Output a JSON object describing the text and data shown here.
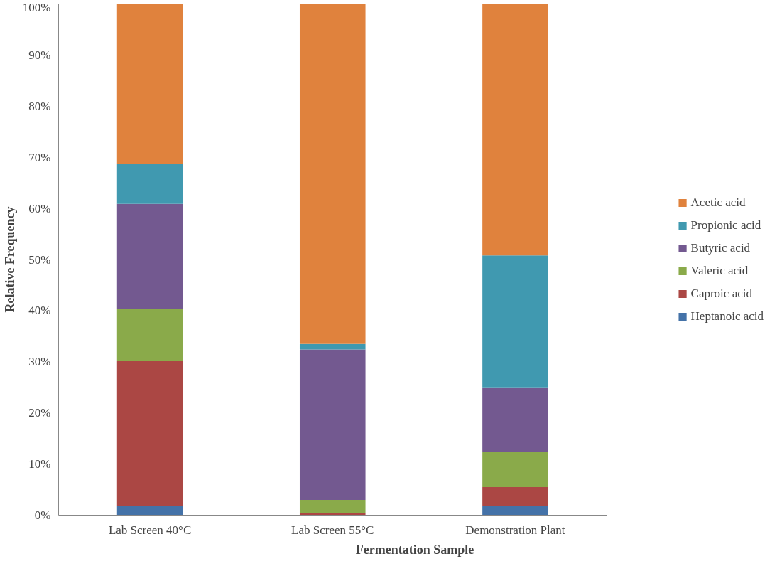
{
  "chart_data": {
    "type": "bar",
    "stacked": true,
    "xlabel": "Fermentation Sample",
    "ylabel": "Relative Frequency",
    "categories": [
      "Lab Screen 40°C",
      "Lab Screen 55°C",
      "Demonstration Plant"
    ],
    "series": [
      {
        "name": "Heptanoic acid",
        "color": "#4472a8",
        "values": [
          1.8,
          0,
          1.8
        ]
      },
      {
        "name": "Caproic acid",
        "color": "#ab4744",
        "values": [
          28.4,
          0.5,
          3.7
        ]
      },
      {
        "name": "Valeric acid",
        "color": "#8aaa4a",
        "values": [
          10.1,
          2.5,
          6.9
        ]
      },
      {
        "name": "Butyric acid",
        "color": "#735990",
        "values": [
          20.6,
          29.4,
          12.6
        ]
      },
      {
        "name": "Propionic acid",
        "color": "#4099b0",
        "values": [
          7.8,
          1.1,
          25.8
        ]
      },
      {
        "name": "Acetic acid",
        "color": "#e0823d",
        "values": [
          31.3,
          66.5,
          49.2
        ]
      }
    ],
    "ylim": [
      0,
      100
    ],
    "yticks": [
      {
        "value": 0,
        "label": "0%"
      },
      {
        "value": 10,
        "label": "10%"
      },
      {
        "value": 20,
        "label": "20%"
      },
      {
        "value": 30,
        "label": "30%"
      },
      {
        "value": 40,
        "label": "40%"
      },
      {
        "value": 50,
        "label": "50%"
      },
      {
        "value": 60,
        "label": "60%"
      },
      {
        "value": 70,
        "label": "70%"
      },
      {
        "value": 80,
        "label": "80%"
      },
      {
        "value": 90,
        "label": "90%"
      },
      {
        "value": 100,
        "label": "100%"
      }
    ],
    "grid": false,
    "legend": "right"
  }
}
